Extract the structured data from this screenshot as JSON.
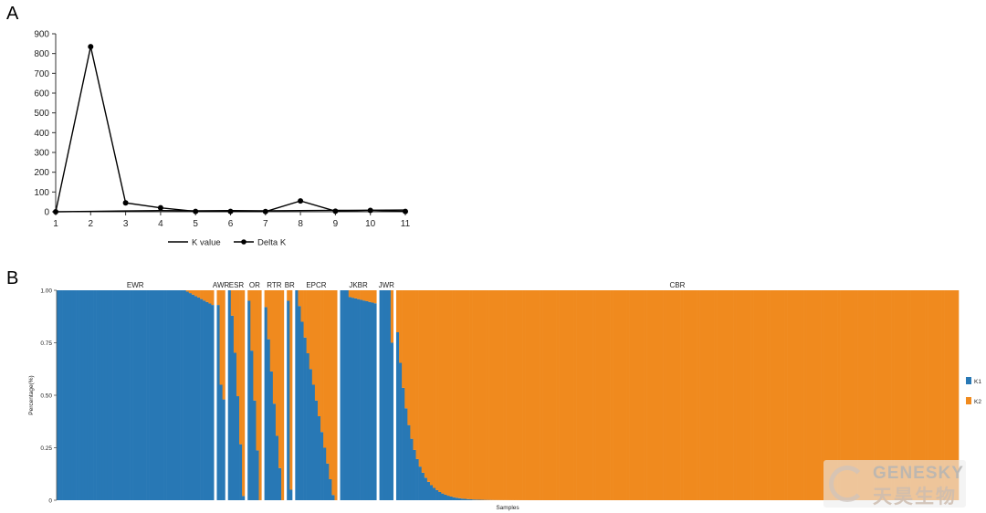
{
  "panels": {
    "a": {
      "label": "A"
    },
    "b": {
      "label": "B"
    }
  },
  "watermark": {
    "english": "GENESKY",
    "chinese": "天昊生物"
  },
  "chart_data": [
    {
      "type": "line",
      "title": "",
      "xlabel": "",
      "ylabel": "",
      "x": [
        1,
        2,
        3,
        4,
        5,
        6,
        7,
        8,
        9,
        10,
        11
      ],
      "xlim": [
        1,
        11
      ],
      "ylim": [
        0,
        900
      ],
      "yticks": [
        0,
        100,
        200,
        300,
        400,
        500,
        600,
        700,
        800,
        900
      ],
      "series": [
        {
          "name": "K value",
          "marker": "none",
          "color": "#000000",
          "values": [
            0,
            2,
            4,
            6,
            5,
            6,
            5,
            6,
            7,
            8,
            9
          ]
        },
        {
          "name": "Delta K",
          "marker": "circle",
          "color": "#000000",
          "values": [
            0,
            835,
            45,
            20,
            2,
            2,
            1,
            55,
            3,
            7,
            2
          ]
        }
      ],
      "legend": "bottom"
    },
    {
      "type": "bar",
      "stacked": true,
      "xlabel": "Samples",
      "ylabel": "Percentage(%)",
      "ylim": [
        0,
        1
      ],
      "yticks": [
        "0",
        "0.25",
        "0.50",
        "0.75",
        "1.00"
      ],
      "legend": "right",
      "colors": {
        "K1": "#2878b5",
        "K2": "#f08a1e"
      },
      "series_names": [
        "K1",
        "K2"
      ],
      "groups": [
        {
          "label": "EWR",
          "n": 56,
          "shape": "ewr"
        },
        {
          "label": "AWR",
          "n": 3,
          "shape": "awr"
        },
        {
          "label": "ESR",
          "n": 6,
          "shape": "esr"
        },
        {
          "label": "OR",
          "n": 5,
          "shape": "or"
        },
        {
          "label": "RTR",
          "n": 7,
          "shape": "rtr"
        },
        {
          "label": "BR",
          "n": 2,
          "shape": "br"
        },
        {
          "label": "EPCR",
          "n": 15,
          "shape": "epcr"
        },
        {
          "label": "JKBR",
          "n": 13,
          "shape": "jkbr"
        },
        {
          "label": "JWR",
          "n": 5,
          "shape": "jwr"
        },
        {
          "label": "CBR",
          "n": 200,
          "shape": "cbr"
        }
      ]
    }
  ]
}
